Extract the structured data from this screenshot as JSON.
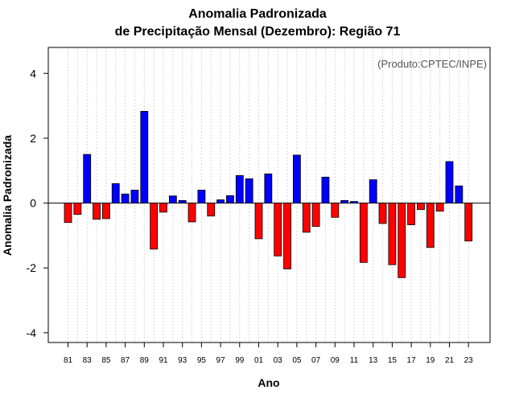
{
  "chart_data": {
    "type": "bar",
    "title_line1": "Anomalia Padronizada",
    "title_line2": "de Precipitação Mensal (Dezembro): Região 71",
    "xlabel": "Ano",
    "ylabel": "Anomalia Padronizada",
    "annotation": "(Produto:CPTEC/INPE)",
    "ylim": [
      -4.3,
      4.8
    ],
    "yticks": [
      -4,
      -2,
      0,
      2,
      4
    ],
    "positive_color": "#0000ff",
    "negative_color": "#ff0000",
    "categories": [
      "81",
      "82",
      "83",
      "84",
      "85",
      "86",
      "87",
      "88",
      "89",
      "90",
      "91",
      "92",
      "93",
      "94",
      "95",
      "96",
      "97",
      "98",
      "99",
      "00",
      "01",
      "02",
      "03",
      "04",
      "05",
      "06",
      "07",
      "08",
      "09",
      "10",
      "11",
      "12",
      "13",
      "14",
      "15",
      "16",
      "17",
      "18",
      "19",
      "20",
      "21",
      "22",
      "23"
    ],
    "xtick_labels": [
      "81",
      "83",
      "85",
      "87",
      "89",
      "91",
      "93",
      "95",
      "97",
      "99",
      "01",
      "03",
      "05",
      "07",
      "09",
      "11",
      "13",
      "15",
      "17",
      "19",
      "21",
      "23"
    ],
    "values": [
      -0.6,
      -0.35,
      1.5,
      -0.5,
      -0.48,
      0.6,
      0.28,
      0.4,
      2.83,
      -1.42,
      -0.28,
      0.22,
      0.08,
      -0.58,
      0.4,
      -0.4,
      0.1,
      0.23,
      0.85,
      0.75,
      -1.1,
      0.9,
      -1.63,
      -2.03,
      1.48,
      -0.9,
      -0.72,
      0.8,
      -0.44,
      0.08,
      0.05,
      -1.83,
      0.72,
      -0.63,
      -1.9,
      -2.3,
      -0.67,
      -0.2,
      -1.37,
      -0.25,
      1.28,
      0.53,
      -1.17
    ]
  }
}
